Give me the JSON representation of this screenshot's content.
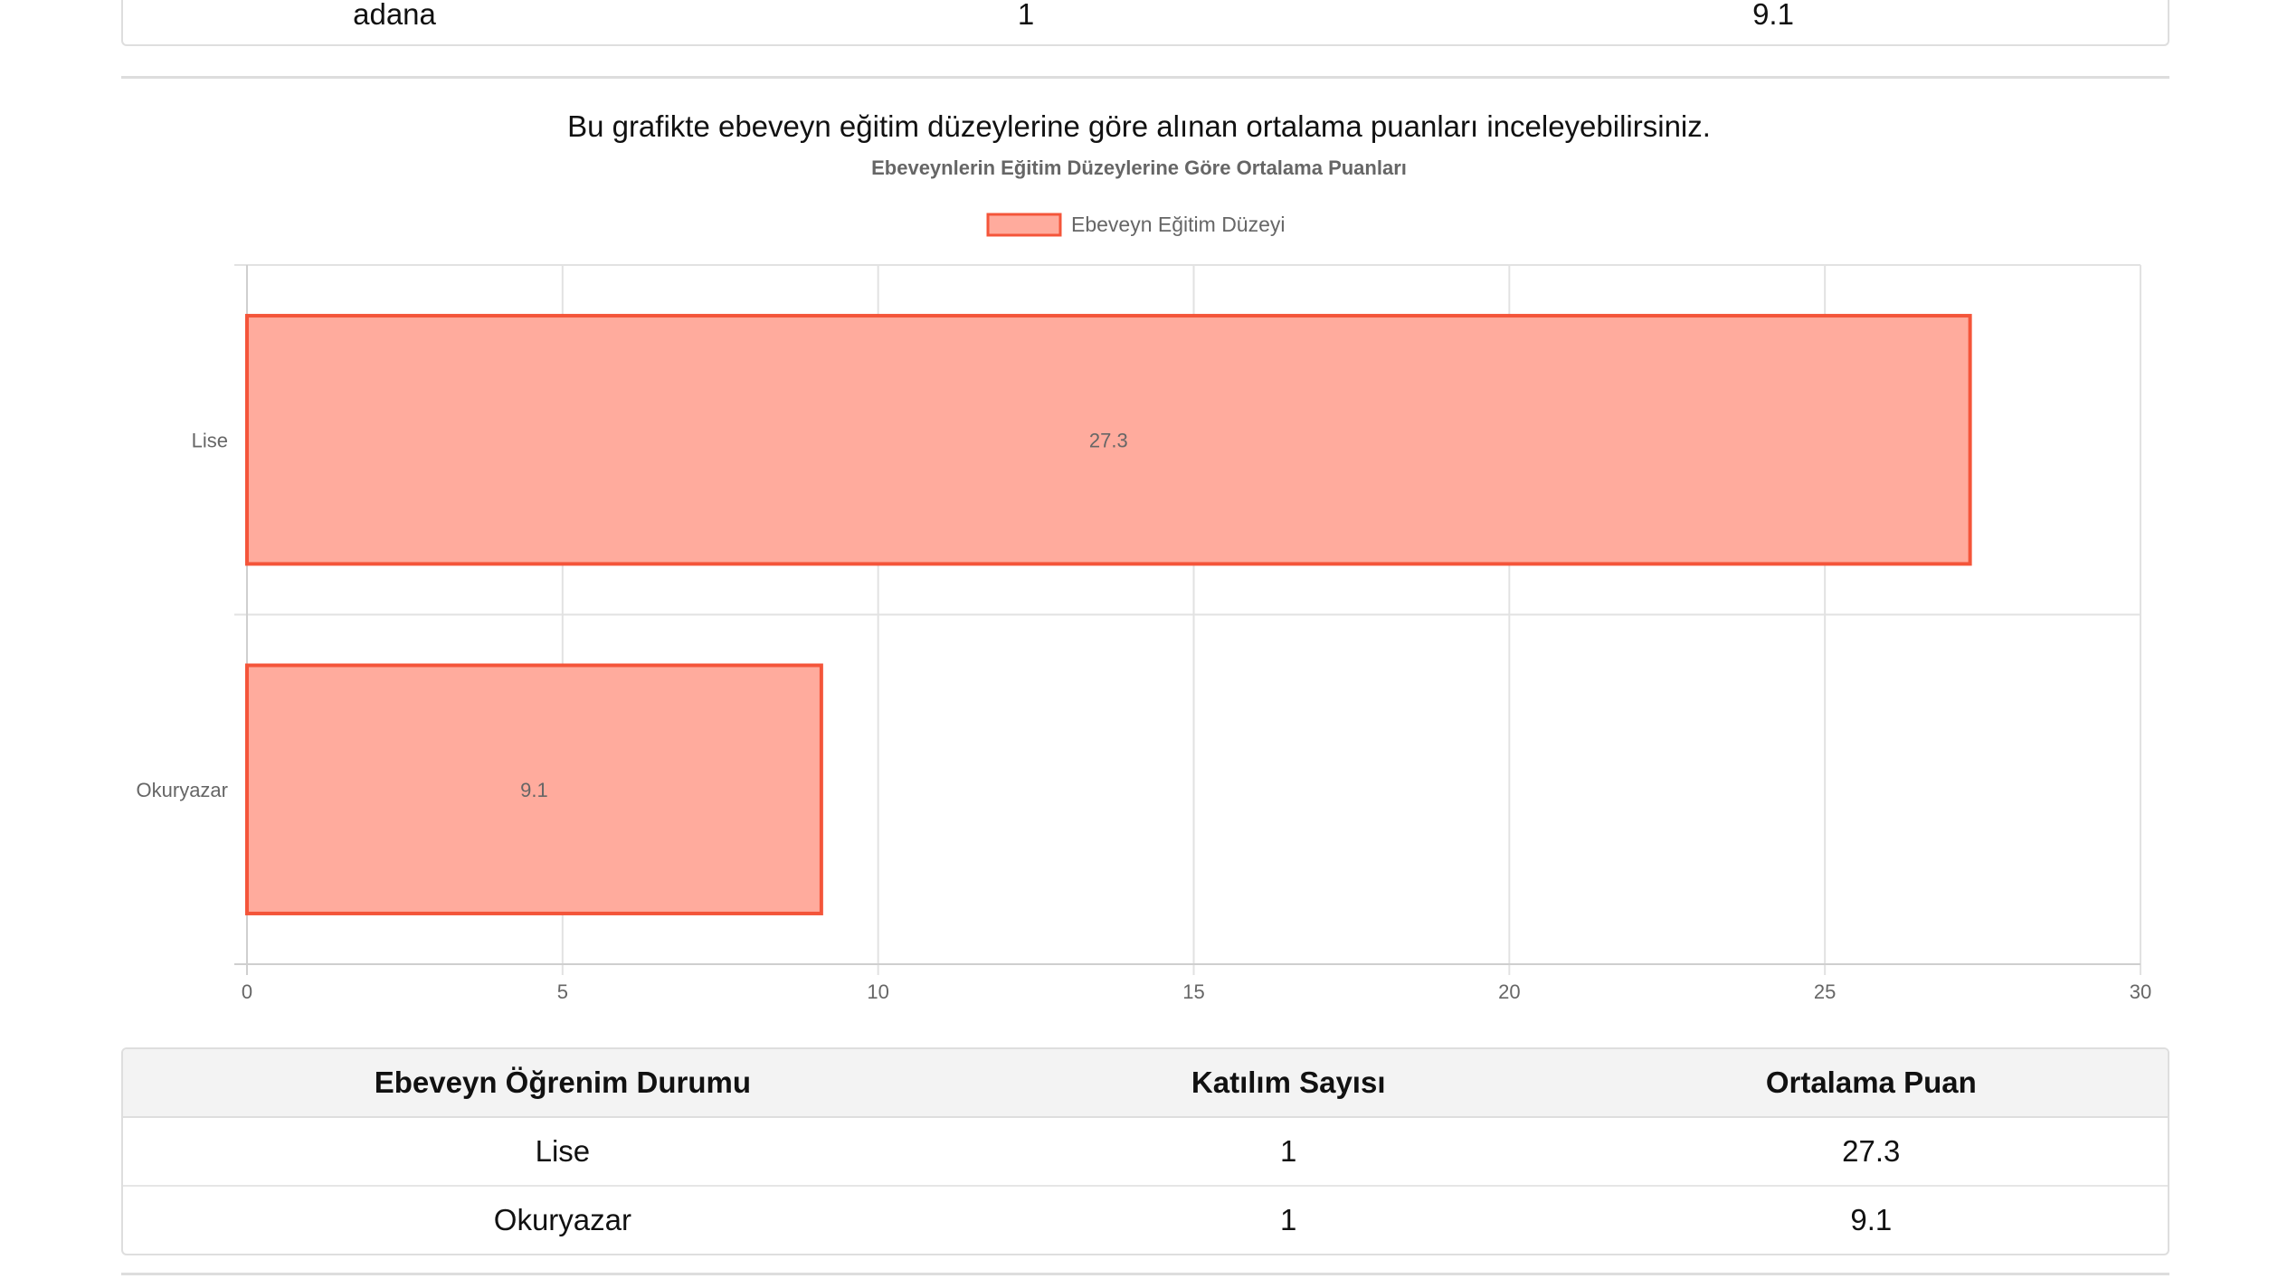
{
  "top_row": {
    "city": "adana",
    "count": "1",
    "score": "9.1"
  },
  "caption": "Bu grafikte ebeveyn eğitim düzeylerine göre alınan ortalama puanları inceleyebilirsiniz.",
  "colors": {
    "bar_fill": "#ffab9d",
    "bar_border": "#f4553a",
    "grid": "#e2e2e2",
    "text": "#666666"
  },
  "chart_data": {
    "type": "bar",
    "orientation": "horizontal",
    "title": "Ebeveynlerin Eğitim Düzeylerine Göre Ortalama Puanları",
    "legend_position": "top",
    "grid": true,
    "categories": [
      "Lise",
      "Okuryazar"
    ],
    "series": [
      {
        "name": "Ebeveyn Eğitim Düzeyi",
        "values": [
          27.3,
          9.1
        ]
      }
    ],
    "data_labels": [
      "27.3",
      "9.1"
    ],
    "xlim": [
      0,
      30
    ],
    "xticks": [
      "0",
      "5",
      "10",
      "15",
      "20",
      "25",
      "30"
    ]
  },
  "table": {
    "headers": [
      "Ebeveyn Öğrenim Durumu",
      "Katılım Sayısı",
      "Ortalama Puan"
    ],
    "rows": [
      [
        "Lise",
        "1",
        "27.3"
      ],
      [
        "Okuryazar",
        "1",
        "9.1"
      ]
    ]
  }
}
